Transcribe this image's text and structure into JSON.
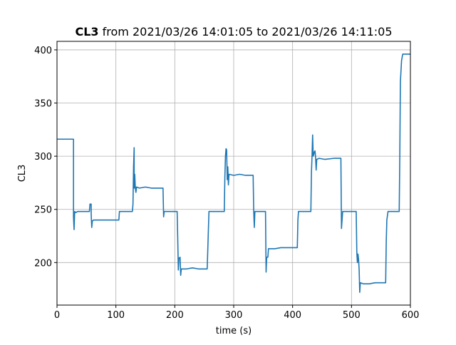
{
  "chart_data": {
    "type": "line",
    "title": {
      "bold_part": "CL3",
      "rest": " from 2021/03/26 14:01:05 to 2021/03/26 14:11:05"
    },
    "xlabel": "time (s)",
    "ylabel": "CL3",
    "xlim": [
      0,
      600
    ],
    "ylim": [
      160,
      408
    ],
    "xticks": [
      0,
      100,
      200,
      300,
      400,
      500,
      600
    ],
    "yticks": [
      200,
      250,
      300,
      350,
      400
    ],
    "grid": true,
    "line_color": "#1f77b4",
    "series": [
      {
        "points": [
          [
            0,
            316
          ],
          [
            28,
            316
          ],
          [
            28,
            243
          ],
          [
            29,
            231
          ],
          [
            30,
            248
          ],
          [
            32,
            247
          ],
          [
            35,
            248
          ],
          [
            40,
            248
          ],
          [
            50,
            248
          ],
          [
            55,
            248
          ],
          [
            56,
            255
          ],
          [
            58,
            255
          ],
          [
            58,
            246
          ],
          [
            59,
            233
          ],
          [
            60,
            239
          ],
          [
            62,
            240
          ],
          [
            70,
            240
          ],
          [
            85,
            240
          ],
          [
            105,
            240
          ],
          [
            106,
            248
          ],
          [
            115,
            248
          ],
          [
            125,
            248
          ],
          [
            128,
            248
          ],
          [
            129,
            255
          ],
          [
            130,
            290
          ],
          [
            131,
            308
          ],
          [
            131,
            270
          ],
          [
            132,
            283
          ],
          [
            133,
            270
          ],
          [
            134,
            266
          ],
          [
            135,
            271
          ],
          [
            140,
            270
          ],
          [
            150,
            271
          ],
          [
            160,
            270
          ],
          [
            170,
            270
          ],
          [
            180,
            270
          ],
          [
            181,
            243
          ],
          [
            182,
            248
          ],
          [
            190,
            248
          ],
          [
            204,
            248
          ],
          [
            205,
            222
          ],
          [
            206,
            193
          ],
          [
            207,
            204
          ],
          [
            209,
            205
          ],
          [
            210,
            188
          ],
          [
            211,
            194
          ],
          [
            220,
            194
          ],
          [
            230,
            195
          ],
          [
            240,
            194
          ],
          [
            255,
            194
          ],
          [
            257,
            230
          ],
          [
            258,
            248
          ],
          [
            270,
            248
          ],
          [
            284,
            248
          ],
          [
            285,
            280
          ],
          [
            286,
            300
          ],
          [
            287,
            307
          ],
          [
            288,
            306
          ],
          [
            289,
            278
          ],
          [
            290,
            290
          ],
          [
            291,
            273
          ],
          [
            292,
            283
          ],
          [
            300,
            282
          ],
          [
            310,
            283
          ],
          [
            320,
            282
          ],
          [
            333,
            282
          ],
          [
            334,
            248
          ],
          [
            335,
            233
          ],
          [
            336,
            248
          ],
          [
            345,
            248
          ],
          [
            354,
            248
          ],
          [
            355,
            191
          ],
          [
            356,
            205
          ],
          [
            358,
            205
          ],
          [
            359,
            213
          ],
          [
            370,
            213
          ],
          [
            380,
            214
          ],
          [
            400,
            214
          ],
          [
            408,
            214
          ],
          [
            409,
            240
          ],
          [
            410,
            248
          ],
          [
            420,
            248
          ],
          [
            431,
            248
          ],
          [
            432,
            285
          ],
          [
            433,
            300
          ],
          [
            434,
            320
          ],
          [
            435,
            300
          ],
          [
            437,
            304
          ],
          [
            438,
            305
          ],
          [
            439,
            299
          ],
          [
            440,
            287
          ],
          [
            441,
            297
          ],
          [
            445,
            298
          ],
          [
            455,
            297
          ],
          [
            470,
            298
          ],
          [
            482,
            298
          ],
          [
            483,
            232
          ],
          [
            485,
            248
          ],
          [
            495,
            248
          ],
          [
            508,
            248
          ],
          [
            509,
            210
          ],
          [
            510,
            200
          ],
          [
            511,
            208
          ],
          [
            512,
            203
          ],
          [
            513,
            193
          ],
          [
            514,
            172
          ],
          [
            515,
            181
          ],
          [
            520,
            180
          ],
          [
            530,
            180
          ],
          [
            540,
            181
          ],
          [
            558,
            181
          ],
          [
            559,
            220
          ],
          [
            560,
            240
          ],
          [
            562,
            248
          ],
          [
            570,
            248
          ],
          [
            581,
            248
          ],
          [
            582,
            300
          ],
          [
            583,
            370
          ],
          [
            585,
            390
          ],
          [
            587,
            396
          ],
          [
            595,
            396
          ],
          [
            600,
            396
          ]
        ]
      }
    ]
  }
}
